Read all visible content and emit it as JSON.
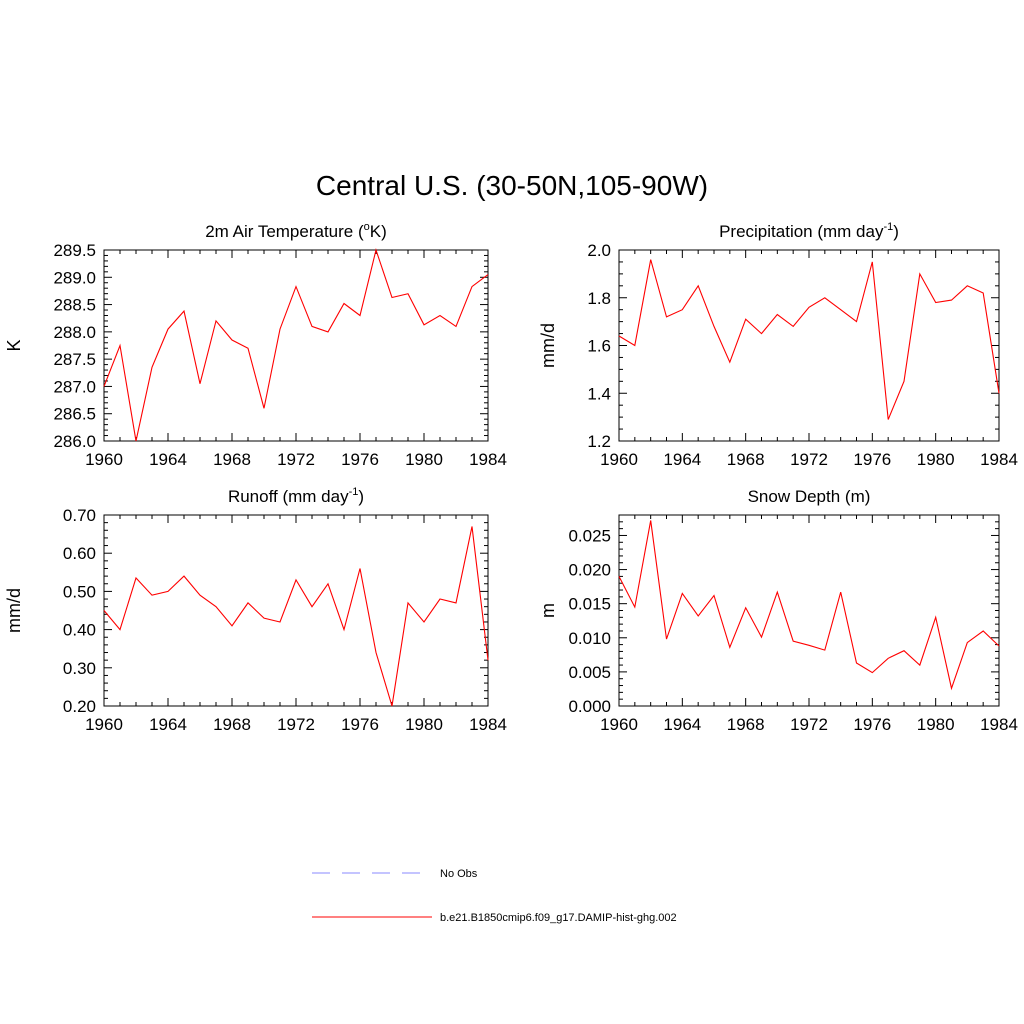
{
  "figure": {
    "title": "Central U.S. (30-50N,105-90W)"
  },
  "legend": {
    "items": [
      {
        "label": "No Obs",
        "color": "#a0a0ff",
        "style": "dashed"
      },
      {
        "label": "b.e21.B1850cmip6.f09_g17.DAMIP-hist-ghg.002",
        "color": "#ff0000",
        "style": "solid"
      }
    ]
  },
  "chart_data": [
    {
      "type": "line",
      "title": "2m Air Temperature (°K)",
      "title_parts": [
        "2m Air Temperature (",
        "o",
        "K)"
      ],
      "ylabel": "K",
      "xlim": [
        1960,
        1984
      ],
      "ylim": [
        286.0,
        289.5
      ],
      "xticks": [
        1960,
        1964,
        1968,
        1972,
        1976,
        1980,
        1984
      ],
      "xtick_labels": [
        "1960",
        "1964",
        "1968",
        "1972",
        "1976",
        "1980",
        "1984"
      ],
      "yticks": [
        286.0,
        286.5,
        287.0,
        287.5,
        288.0,
        288.5,
        289.0,
        289.5
      ],
      "ytick_labels": [
        "286.0",
        "286.5",
        "287.0",
        "287.5",
        "288.0",
        "288.5",
        "289.0",
        "289.5"
      ],
      "yminor": 0.1,
      "series": [
        {
          "color": "#ff0000",
          "x": [
            1960,
            1961,
            1962,
            1963,
            1964,
            1965,
            1966,
            1967,
            1968,
            1969,
            1970,
            1971,
            1972,
            1973,
            1974,
            1975,
            1976,
            1977,
            1978,
            1979,
            1980,
            1981,
            1982,
            1983,
            1984
          ],
          "y": [
            287.0,
            287.75,
            286.0,
            287.35,
            288.05,
            288.38,
            287.05,
            288.2,
            287.85,
            287.7,
            286.6,
            288.05,
            288.83,
            288.1,
            288.0,
            288.52,
            288.3,
            289.5,
            288.63,
            288.7,
            288.13,
            288.3,
            288.1,
            288.83,
            289.05
          ]
        }
      ]
    },
    {
      "type": "line",
      "title": "Precipitation (mm day-1)",
      "title_parts": [
        "Precipitation (mm day",
        "-1",
        ")"
      ],
      "ylabel": "mm/d",
      "xlim": [
        1960,
        1984
      ],
      "ylim": [
        1.2,
        2.0
      ],
      "xticks": [
        1960,
        1964,
        1968,
        1972,
        1976,
        1980,
        1984
      ],
      "xtick_labels": [
        "1960",
        "1964",
        "1968",
        "1972",
        "1976",
        "1980",
        "1984"
      ],
      "yticks": [
        1.2,
        1.4,
        1.6,
        1.8,
        2.0
      ],
      "ytick_labels": [
        "1.2",
        "1.4",
        "1.6",
        "1.8",
        "2.0"
      ],
      "yminor": 0.05,
      "series": [
        {
          "color": "#ff0000",
          "x": [
            1960,
            1961,
            1962,
            1963,
            1964,
            1965,
            1966,
            1967,
            1968,
            1969,
            1970,
            1971,
            1972,
            1973,
            1974,
            1975,
            1976,
            1977,
            1978,
            1979,
            1980,
            1981,
            1982,
            1983,
            1984
          ],
          "y": [
            1.64,
            1.6,
            1.96,
            1.72,
            1.75,
            1.85,
            1.68,
            1.53,
            1.71,
            1.65,
            1.73,
            1.68,
            1.76,
            1.8,
            1.75,
            1.7,
            1.95,
            1.29,
            1.45,
            1.9,
            1.78,
            1.79,
            1.85,
            1.82,
            1.4
          ]
        }
      ]
    },
    {
      "type": "line",
      "title": "Runoff (mm day-1)",
      "title_parts": [
        "Runoff (mm day",
        "-1",
        ")"
      ],
      "ylabel": "mm/d",
      "xlim": [
        1960,
        1984
      ],
      "ylim": [
        0.2,
        0.7
      ],
      "xticks": [
        1960,
        1964,
        1968,
        1972,
        1976,
        1980,
        1984
      ],
      "xtick_labels": [
        "1960",
        "1964",
        "1968",
        "1972",
        "1976",
        "1980",
        "1984"
      ],
      "yticks": [
        0.2,
        0.3,
        0.4,
        0.5,
        0.6,
        0.7
      ],
      "ytick_labels": [
        "0.20",
        "0.30",
        "0.40",
        "0.50",
        "0.60",
        "0.70"
      ],
      "yminor": 0.02,
      "series": [
        {
          "color": "#ff0000",
          "x": [
            1960,
            1961,
            1962,
            1963,
            1964,
            1965,
            1966,
            1967,
            1968,
            1969,
            1970,
            1971,
            1972,
            1973,
            1974,
            1975,
            1976,
            1977,
            1978,
            1979,
            1980,
            1981,
            1982,
            1983,
            1984
          ],
          "y": [
            0.45,
            0.4,
            0.535,
            0.49,
            0.5,
            0.54,
            0.49,
            0.46,
            0.41,
            0.47,
            0.43,
            0.42,
            0.53,
            0.46,
            0.52,
            0.4,
            0.56,
            0.34,
            0.2,
            0.47,
            0.42,
            0.48,
            0.47,
            0.67,
            0.32
          ]
        }
      ]
    },
    {
      "type": "line",
      "title": "Snow Depth (m)",
      "title_parts": [
        "Snow Depth (m)"
      ],
      "ylabel": "m",
      "xlim": [
        1960,
        1984
      ],
      "ylim": [
        0.0,
        0.028
      ],
      "xticks": [
        1960,
        1964,
        1968,
        1972,
        1976,
        1980,
        1984
      ],
      "xtick_labels": [
        "1960",
        "1964",
        "1968",
        "1972",
        "1976",
        "1980",
        "1984"
      ],
      "yticks": [
        0.0,
        0.005,
        0.01,
        0.015,
        0.02,
        0.025
      ],
      "ytick_labels": [
        "0.000",
        "0.005",
        "0.010",
        "0.015",
        "0.020",
        "0.025"
      ],
      "yminor": 0.001,
      "series": [
        {
          "color": "#ff0000",
          "x": [
            1960,
            1961,
            1962,
            1963,
            1964,
            1965,
            1966,
            1967,
            1968,
            1969,
            1970,
            1971,
            1972,
            1973,
            1974,
            1975,
            1976,
            1977,
            1978,
            1979,
            1980,
            1981,
            1982,
            1983,
            1984
          ],
          "y": [
            0.019,
            0.0145,
            0.0272,
            0.0098,
            0.0165,
            0.0132,
            0.0162,
            0.0086,
            0.0144,
            0.0101,
            0.0167,
            0.0095,
            0.0089,
            0.0082,
            0.0167,
            0.0063,
            0.0049,
            0.007,
            0.0081,
            0.006,
            0.013,
            0.0026,
            0.0093,
            0.011,
            0.0088
          ]
        }
      ]
    }
  ]
}
